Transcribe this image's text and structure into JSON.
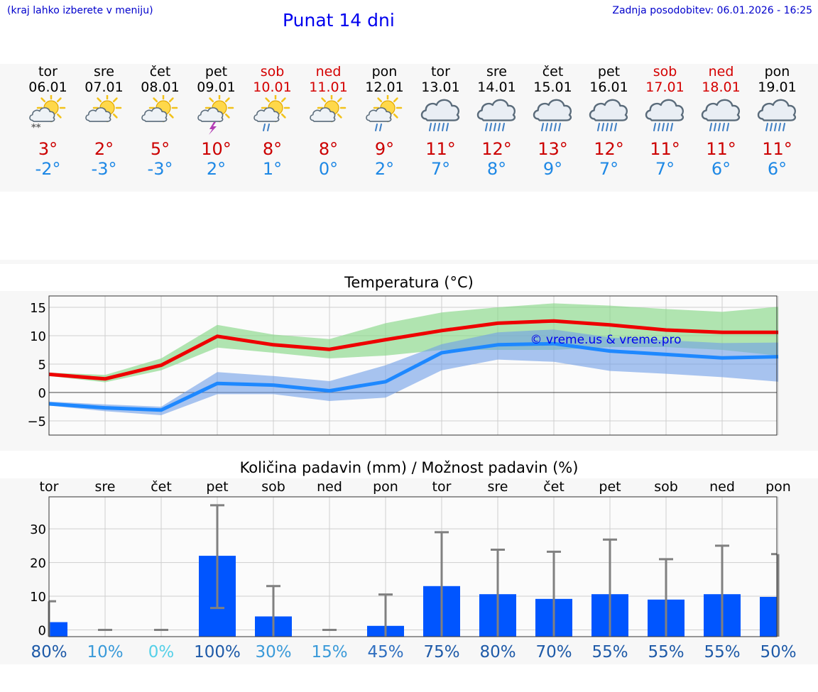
{
  "header": {
    "note": "(kraj lahko izberete v meniju)",
    "title": "Punat 14 dni",
    "updated": "Zadnja posodobitev: 06.01.2026 - 16:25"
  },
  "days": [
    {
      "name": "tor",
      "date": "06.01",
      "weekend": false,
      "icon": "sun-cloud-snow-icon",
      "tmax": "3°",
      "tmin": "-2°"
    },
    {
      "name": "sre",
      "date": "07.01",
      "weekend": false,
      "icon": "sun-cloud-icon",
      "tmax": "2°",
      "tmin": "-3°"
    },
    {
      "name": "čet",
      "date": "08.01",
      "weekend": false,
      "icon": "sun-cloud-icon",
      "tmax": "5°",
      "tmin": "-3°"
    },
    {
      "name": "pet",
      "date": "09.01",
      "weekend": false,
      "icon": "sun-cloud-thunder-icon",
      "tmax": "10°",
      "tmin": "2°"
    },
    {
      "name": "sob",
      "date": "10.01",
      "weekend": true,
      "icon": "sun-cloud-rain-icon",
      "tmax": "8°",
      "tmin": "1°"
    },
    {
      "name": "ned",
      "date": "11.01",
      "weekend": true,
      "icon": "sun-cloud-icon",
      "tmax": "8°",
      "tmin": "0°"
    },
    {
      "name": "pon",
      "date": "12.01",
      "weekend": false,
      "icon": "sun-cloud-rain-icon",
      "tmax": "9°",
      "tmin": "2°"
    },
    {
      "name": "tor",
      "date": "13.01",
      "weekend": false,
      "icon": "cloud-rain-icon",
      "tmax": "11°",
      "tmin": "7°"
    },
    {
      "name": "sre",
      "date": "14.01",
      "weekend": false,
      "icon": "cloud-rain-icon",
      "tmax": "12°",
      "tmin": "8°"
    },
    {
      "name": "čet",
      "date": "15.01",
      "weekend": false,
      "icon": "cloud-rain-icon",
      "tmax": "13°",
      "tmin": "9°"
    },
    {
      "name": "pet",
      "date": "16.01",
      "weekend": false,
      "icon": "cloud-rain-icon",
      "tmax": "12°",
      "tmin": "7°"
    },
    {
      "name": "sob",
      "date": "17.01",
      "weekend": true,
      "icon": "cloud-rain-icon",
      "tmax": "11°",
      "tmin": "7°"
    },
    {
      "name": "ned",
      "date": "18.01",
      "weekend": true,
      "icon": "cloud-rain-icon",
      "tmax": "11°",
      "tmin": "6°"
    },
    {
      "name": "pon",
      "date": "19.01",
      "weekend": false,
      "icon": "cloud-rain-icon",
      "tmax": "11°",
      "tmin": "6°"
    }
  ],
  "colors": {
    "max_line": "#ee0000",
    "max_band": "#7ed67e",
    "min_line": "#1e88ff",
    "min_band": "#6f9fe8",
    "bar": "#0055ff",
    "whisker": "#808080",
    "weekday_text": "#000000",
    "weekend_text": "#d40000",
    "watermark": "#0000ee"
  },
  "chart_data": [
    {
      "type": "line",
      "title": "Temperatura (°C)",
      "xlabel": "",
      "ylabel": "",
      "ylim": [
        -7.5,
        17
      ],
      "yticks": [
        -5,
        0,
        5,
        10,
        15
      ],
      "ytick_labels": [
        "−5",
        "0",
        "5",
        "10",
        "15"
      ],
      "grid": true,
      "watermark": "© vreme.us & vreme.pro",
      "x": [
        0,
        1,
        2,
        3,
        4,
        5,
        6,
        7,
        8,
        9,
        10,
        11,
        12,
        13
      ],
      "series": [
        {
          "name": "max",
          "values": [
            3.2,
            2.4,
            4.8,
            9.9,
            8.4,
            7.6,
            9.3,
            10.9,
            12.2,
            12.6,
            11.9,
            11.0,
            10.6,
            10.6
          ],
          "band_low": [
            2.9,
            1.8,
            3.9,
            7.9,
            7.0,
            6.0,
            6.5,
            7.5,
            7.5,
            7.5,
            8.0,
            8.0,
            7.5,
            6.5
          ],
          "band_high": [
            3.5,
            3.1,
            6.0,
            11.9,
            10.2,
            9.4,
            12.2,
            14.1,
            15.0,
            15.7,
            15.3,
            14.7,
            14.2,
            15.1
          ]
        },
        {
          "name": "min",
          "values": [
            -2.0,
            -2.7,
            -3.1,
            1.6,
            1.3,
            0.3,
            1.9,
            7.0,
            8.4,
            8.6,
            7.3,
            6.7,
            6.1,
            6.3
          ],
          "band_low": [
            -2.3,
            -3.3,
            -4.0,
            -0.3,
            -0.3,
            -1.5,
            -0.9,
            3.9,
            5.8,
            5.4,
            3.8,
            3.3,
            2.7,
            1.9
          ],
          "band_high": [
            -1.6,
            -2.1,
            -2.5,
            3.6,
            2.9,
            2.0,
            4.8,
            8.5,
            10.6,
            11.1,
            9.7,
            9.2,
            8.7,
            8.8
          ]
        }
      ]
    },
    {
      "type": "bar",
      "title": "Količina padavin (mm) / Možnost padavin (%)",
      "xlabel": "",
      "ylabel": "",
      "ylim": [
        -2,
        39.5
      ],
      "yticks": [
        0,
        10,
        20,
        30
      ],
      "grid": true,
      "categories": [
        "tor",
        "sre",
        "čet",
        "pet",
        "sob",
        "ned",
        "pon",
        "tor",
        "sre",
        "čet",
        "pet",
        "sob",
        "ned",
        "pon"
      ],
      "values": [
        2.3,
        0,
        0,
        22,
        4,
        0,
        1.2,
        13,
        10.6,
        9.2,
        10.6,
        9,
        10.6,
        9.8
      ],
      "err_low": [
        null,
        0,
        0,
        6.5,
        null,
        0,
        null,
        null,
        null,
        null,
        null,
        null,
        null,
        null
      ],
      "err_high": [
        8.5,
        0,
        0,
        37,
        13,
        0,
        10.5,
        29,
        23.8,
        23.2,
        26.8,
        21,
        25,
        22.5
      ],
      "probability": [
        "80%",
        "10%",
        "0%",
        "100%",
        "30%",
        "15%",
        "45%",
        "75%",
        "80%",
        "70%",
        "55%",
        "55%",
        "55%",
        "50%"
      ],
      "probability_colors": [
        "#1e5aa8",
        "#3a9ad9",
        "#55d0e8",
        "#1e5aa8",
        "#3a9ad9",
        "#3a9ad9",
        "#2f6fc0",
        "#1e5aa8",
        "#1e5aa8",
        "#1e5aa8",
        "#1e5aa8",
        "#1e5aa8",
        "#1e5aa8",
        "#1e5aa8"
      ]
    }
  ]
}
